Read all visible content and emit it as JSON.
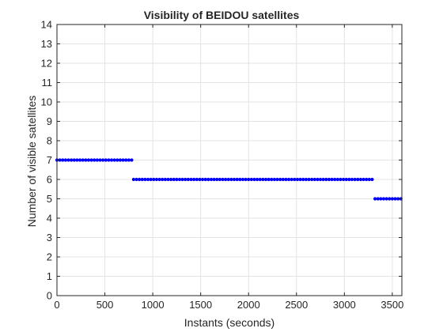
{
  "chart_data": {
    "type": "scatter",
    "title": "Visibility of BEIDOU satellites",
    "xlabel": "Instants (seconds)",
    "ylabel": "Number of visible satellites",
    "xlim": [
      0,
      3600
    ],
    "ylim": [
      0,
      14
    ],
    "xticks": [
      0,
      500,
      1000,
      1500,
      2000,
      2500,
      3000,
      3500
    ],
    "yticks": [
      0,
      1,
      2,
      3,
      4,
      5,
      6,
      7,
      8,
      9,
      10,
      11,
      12,
      13,
      14
    ],
    "grid": true,
    "sample_step": 30,
    "series": [
      {
        "x_start": 0,
        "x_end": 780,
        "y": 7
      },
      {
        "x_start": 800,
        "x_end": 3300,
        "y": 6
      },
      {
        "x_start": 3320,
        "x_end": 3600,
        "y": 5
      }
    ],
    "marker_color": "#0000ff"
  }
}
